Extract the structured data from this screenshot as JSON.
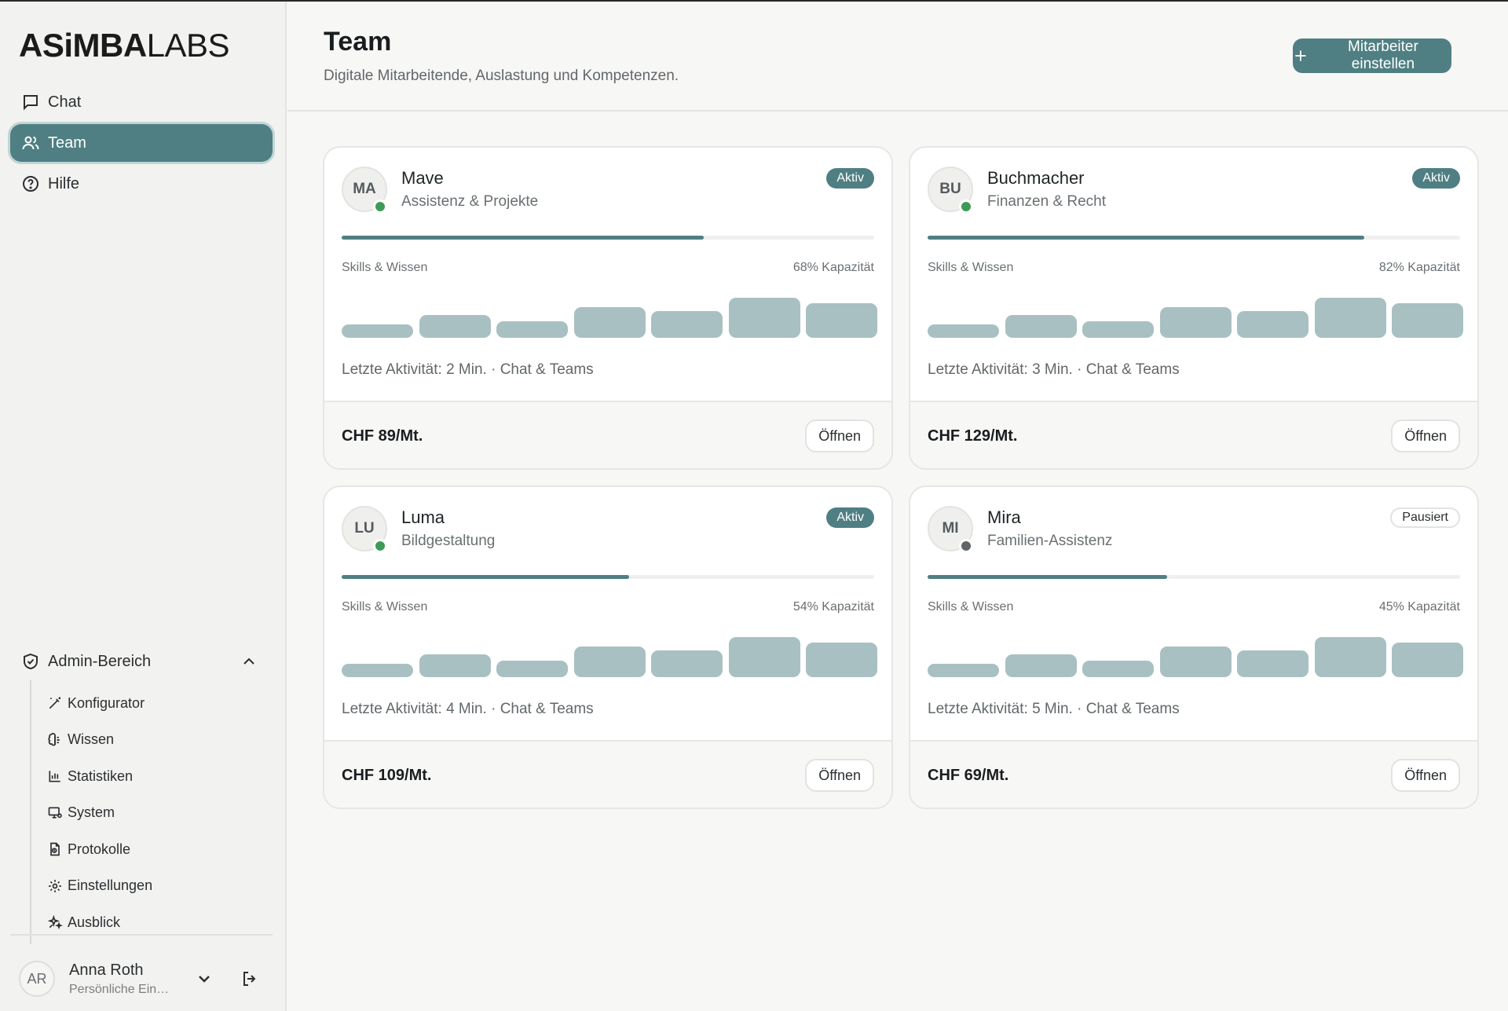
{
  "brand": {
    "logo_bold": "ASiMBA",
    "logo_light": "LABS"
  },
  "sidebar": {
    "nav": [
      {
        "label": "Chat",
        "icon": "chat-bubble-icon",
        "active": false
      },
      {
        "label": "Team",
        "icon": "users-icon",
        "active": true
      },
      {
        "label": "Hilfe",
        "icon": "help-circle-icon",
        "active": false
      }
    ],
    "admin": {
      "title": "Admin-Bereich",
      "icon": "shield-icon",
      "expanded": true,
      "items": [
        {
          "label": "Konfigurator",
          "icon": "magic-wand-icon"
        },
        {
          "label": "Wissen",
          "icon": "brain-icon"
        },
        {
          "label": "Statistiken",
          "icon": "bar-chart-icon"
        },
        {
          "label": "System",
          "icon": "monitor-icon"
        },
        {
          "label": "Protokolle",
          "icon": "logs-icon"
        },
        {
          "label": "Einstellungen",
          "icon": "gear-icon"
        },
        {
          "label": "Ausblick",
          "icon": "sparkles-icon"
        }
      ]
    },
    "user": {
      "initials": "AR",
      "name": "Anna Roth",
      "subtitle": "Persönliche Einstellungen"
    }
  },
  "header": {
    "title": "Team",
    "subtitle": "Digitale Mitarbeitende, Auslastung und Kompetenzen.",
    "primary_button": "Mitarbeiter einstellen"
  },
  "colors": {
    "accent": "#4f7f82",
    "status_active": "#3e9b57",
    "status_paused": "#5f6568",
    "bar": "#a9c0c2"
  },
  "team": [
    {
      "initials": "MA",
      "name": "Mave",
      "role": "Assistenz & Projekte",
      "status": "Aktiv",
      "status_type": "aktiv",
      "capacity": 68,
      "skills_label": "Skills & Wissen",
      "capacity_label": "68% Kapazität",
      "skill_levels": [
        0.32,
        0.55,
        0.4,
        0.75,
        0.65,
        0.98,
        0.85
      ],
      "activity": "Letzte Aktivität: 2 Min. · Chat & Teams",
      "price": "CHF 89/Mt.",
      "open_label": "Öffnen"
    },
    {
      "initials": "BU",
      "name": "Buchmacher",
      "role": "Finanzen & Recht",
      "status": "Aktiv",
      "status_type": "aktiv",
      "capacity": 82,
      "skills_label": "Skills & Wissen",
      "capacity_label": "82% Kapazität",
      "skill_levels": [
        0.32,
        0.55,
        0.4,
        0.75,
        0.65,
        0.98,
        0.85
      ],
      "activity": "Letzte Aktivität: 3 Min. · Chat & Teams",
      "price": "CHF 129/Mt.",
      "open_label": "Öffnen"
    },
    {
      "initials": "LU",
      "name": "Luma",
      "role": "Bildgestaltung",
      "status": "Aktiv",
      "status_type": "aktiv",
      "capacity": 54,
      "skills_label": "Skills & Wissen",
      "capacity_label": "54% Kapazität",
      "skill_levels": [
        0.32,
        0.55,
        0.4,
        0.75,
        0.65,
        0.98,
        0.85
      ],
      "activity": "Letzte Aktivität: 4 Min. · Chat & Teams",
      "price": "CHF 109/Mt.",
      "open_label": "Öffnen"
    },
    {
      "initials": "MI",
      "name": "Mira",
      "role": "Familien-Assistenz",
      "status": "Pausiert",
      "status_type": "pausiert",
      "capacity": 45,
      "skills_label": "Skills & Wissen",
      "capacity_label": "45% Kapazität",
      "skill_levels": [
        0.32,
        0.55,
        0.4,
        0.75,
        0.65,
        0.98,
        0.85
      ],
      "activity": "Letzte Aktivität: 5 Min. · Chat & Teams",
      "price": "CHF 69/Mt.",
      "open_label": "Öffnen"
    }
  ]
}
